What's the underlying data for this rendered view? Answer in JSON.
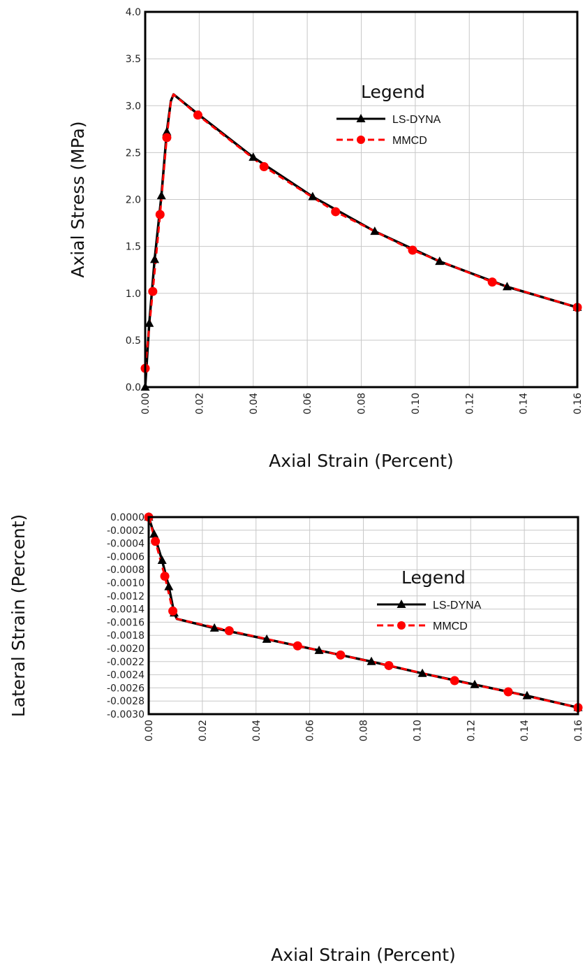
{
  "chart_data": [
    {
      "type": "line",
      "title": "",
      "xlabel": "Axial Strain (Percent)",
      "ylabel": "Axial Stress (MPa)",
      "xlim": [
        0,
        0.16
      ],
      "ylim": [
        0,
        4.0
      ],
      "x_ticks": [
        "0.00",
        "0.02",
        "0.04",
        "0.06",
        "0.08",
        "0.10",
        "0.12",
        "0.14",
        "0.16"
      ],
      "y_ticks": [
        "0.0",
        "0.5",
        "1.0",
        "1.5",
        "2.0",
        "2.5",
        "3.0",
        "3.5",
        "4.0"
      ],
      "grid": true,
      "legend_title": "Legend",
      "legend_position": "top-right",
      "series": [
        {
          "name": "LS-DYNA",
          "color": "#000000",
          "line": "solid",
          "marker": "triangle",
          "x": [
            0.0,
            0.0015,
            0.0035,
            0.006,
            0.008,
            0.0095,
            0.0105,
            0.02,
            0.04,
            0.062,
            0.085,
            0.109,
            0.134,
            0.16
          ],
          "y": [
            0.0,
            0.68,
            1.36,
            2.04,
            2.72,
            3.05,
            3.12,
            2.9,
            2.45,
            2.03,
            1.66,
            1.34,
            1.07,
            0.85
          ]
        },
        {
          "name": "MMCD",
          "color": "#ff0000",
          "line": "dashed",
          "marker": "circle",
          "x": [
            0.0,
            0.0028,
            0.0055,
            0.008,
            0.0095,
            0.0105,
            0.0195,
            0.044,
            0.0705,
            0.099,
            0.1285,
            0.16
          ],
          "y": [
            0.2,
            1.02,
            1.84,
            2.66,
            3.05,
            3.12,
            2.9,
            2.35,
            1.87,
            1.46,
            1.12,
            0.85
          ]
        }
      ]
    },
    {
      "type": "line",
      "title": "",
      "xlabel": "Axial Strain (Percent)",
      "ylabel": "Lateral Strain (Percent)",
      "xlim": [
        0,
        0.16
      ],
      "ylim": [
        -0.003,
        0.0
      ],
      "x_ticks": [
        "0.00",
        "0.02",
        "0.04",
        "0.06",
        "0.08",
        "0.10",
        "0.12",
        "0.14",
        "0.16"
      ],
      "y_ticks": [
        "-0.0030",
        "-0.0028",
        "-0.0026",
        "-0.0024",
        "-0.0022",
        "-0.0020",
        "-0.0018",
        "-0.0016",
        "-0.0014",
        "-0.0012",
        "-0.0010",
        "-0.0008",
        "-0.0006",
        "-0.0004",
        "-0.0002",
        "0.0000"
      ],
      "grid": true,
      "legend_title": "Legend",
      "legend_position": "top-right",
      "series": [
        {
          "name": "LS-DYNA",
          "color": "#000000",
          "line": "solid",
          "marker": "triangle",
          "x": [
            0.0,
            0.002,
            0.005,
            0.0075,
            0.0095,
            0.0105,
            0.0245,
            0.044,
            0.0635,
            0.083,
            0.102,
            0.1215,
            0.141,
            0.16
          ],
          "y": [
            0.0,
            -0.00026,
            -0.00066,
            -0.00106,
            -0.00146,
            -0.00155,
            -0.00169,
            -0.00186,
            -0.00203,
            -0.0022,
            -0.00238,
            -0.00255,
            -0.00272,
            -0.0029
          ]
        },
        {
          "name": "MMCD",
          "color": "#ff0000",
          "line": "dashed",
          "marker": "circle",
          "x": [
            0.0,
            0.0025,
            0.006,
            0.009,
            0.0105,
            0.03,
            0.0555,
            0.0715,
            0.0895,
            0.114,
            0.134,
            0.16
          ],
          "y": [
            0.0,
            -0.00037,
            -0.0009,
            -0.00143,
            -0.00155,
            -0.00173,
            -0.00196,
            -0.0021,
            -0.00226,
            -0.00249,
            -0.00266,
            -0.0029
          ]
        }
      ]
    }
  ]
}
